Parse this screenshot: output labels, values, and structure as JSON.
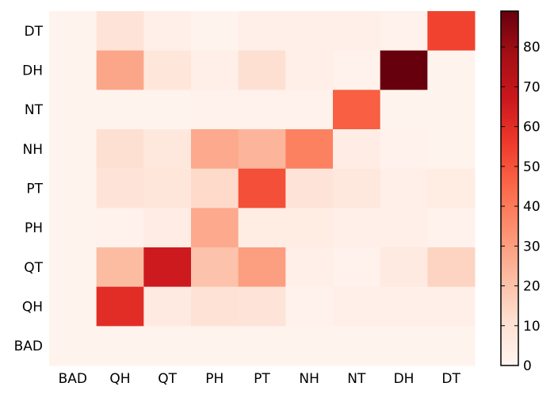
{
  "chart_data": {
    "type": "heatmap",
    "title": "",
    "xlabel": "",
    "ylabel": "",
    "x_categories": [
      "BAD",
      "QH",
      "QT",
      "PH",
      "PT",
      "NH",
      "NT",
      "DH",
      "DT"
    ],
    "y_categories": [
      "DT",
      "DH",
      "NT",
      "NH",
      "PT",
      "PH",
      "QT",
      "QH",
      "BAD"
    ],
    "values": [
      [
        1,
        9,
        3,
        1,
        3,
        3,
        3,
        2,
        54
      ],
      [
        1,
        28,
        8,
        3,
        11,
        3,
        2,
        89,
        1
      ],
      [
        1,
        1,
        1,
        2,
        2,
        2,
        47,
        1,
        1
      ],
      [
        1,
        11,
        7,
        27,
        24,
        38,
        4,
        2,
        1
      ],
      [
        1,
        9,
        8,
        13,
        51,
        9,
        7,
        3,
        5
      ],
      [
        1,
        2,
        4,
        27,
        5,
        5,
        3,
        3,
        2
      ],
      [
        1,
        22,
        66,
        20,
        30,
        3,
        2,
        6,
        15
      ],
      [
        1,
        60,
        6,
        10,
        9,
        2,
        3,
        3,
        3
      ],
      [
        1,
        1,
        1,
        1,
        1,
        1,
        1,
        1,
        1
      ]
    ],
    "colorbar": {
      "min": 0,
      "max": 89,
      "ticks": [
        "0",
        "10",
        "20",
        "30",
        "40",
        "50",
        "60",
        "70",
        "80"
      ]
    },
    "colormap": [
      "#fff5f0",
      "#fee0d2",
      "#fcbba1",
      "#fc9272",
      "#fb6a4a",
      "#ef3b2c",
      "#cb181d",
      "#a50f15",
      "#67000d"
    ],
    "grid": false,
    "legend": "colorbar-right"
  }
}
